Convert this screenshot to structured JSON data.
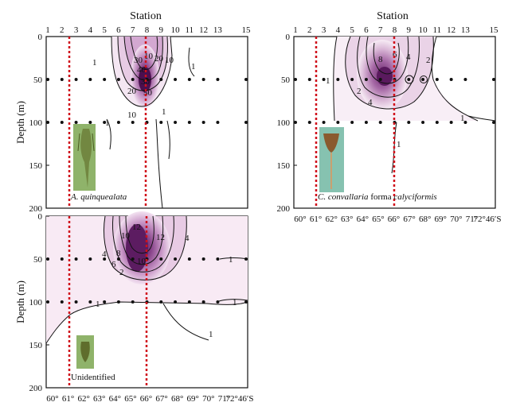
{
  "chart_data": [
    {
      "type": "contour",
      "panel": "top-left",
      "title": "Station",
      "ylabel": "Depth (m)",
      "x_top_ticks": [
        "1",
        "2",
        "3",
        "4",
        "5",
        "6",
        "7",
        "8",
        "9",
        "10",
        "11",
        "12",
        "13",
        "15"
      ],
      "y_ticks": [
        "0",
        "50",
        "100",
        "150",
        "200"
      ],
      "ylim": [
        0,
        200
      ],
      "caption": "A. quinquealata",
      "caption_italic": "A. quinquealata",
      "caption_rest": "",
      "contour_labels": [
        "1",
        "1",
        "1",
        "10",
        "10",
        "10",
        "20",
        "20",
        "30",
        "30",
        "40",
        "50",
        "1"
      ],
      "sample_depths": [
        0,
        50,
        100
      ],
      "red_line_stations": [
        "2",
        "7"
      ],
      "peak": {
        "station": "7",
        "depth": 50
      }
    },
    {
      "type": "contour",
      "panel": "top-right",
      "title": "Station",
      "ylabel": "",
      "x_top_ticks": [
        "1",
        "2",
        "3",
        "4",
        "5",
        "6",
        "7",
        "8",
        "9",
        "10",
        "11",
        "12",
        "13",
        "15"
      ],
      "x_bottom_ticks": [
        "60°",
        "61°",
        "62°",
        "63°",
        "64°",
        "65°",
        "66°",
        "67°",
        "68°",
        "69°",
        "70°",
        "71°",
        "72°46′S"
      ],
      "y_ticks": [
        "0",
        "50",
        "100",
        "150",
        "200"
      ],
      "ylim": [
        0,
        200
      ],
      "caption": "C. convallaria forma calyciformis",
      "caption_italic": "C. convallaria",
      "caption_rest": "forma",
      "caption_italic2": "calyciformis",
      "contour_labels": [
        "8",
        "6",
        "4",
        "2",
        "2",
        "4",
        "1",
        "1",
        "1"
      ],
      "sample_depths": [
        0,
        50,
        100
      ],
      "red_line_stations": [
        "2",
        "7"
      ],
      "peak": {
        "station": "7",
        "depth": 50
      }
    },
    {
      "type": "contour",
      "panel": "bottom-left",
      "title": "",
      "ylabel": "Depth (m)",
      "x_bottom_ticks": [
        "60°",
        "61°",
        "62°",
        "63°",
        "64°",
        "65°",
        "66°",
        "67°",
        "68°",
        "69°",
        "70°",
        "71°",
        "72°46′S"
      ],
      "y_ticks": [
        "0",
        "50",
        "100",
        "150",
        "200"
      ],
      "ylim": [
        0,
        200
      ],
      "caption": "Unidentified",
      "contour_labels": [
        "12",
        "10",
        "8",
        "6",
        "4",
        "2",
        "4",
        "12",
        "10",
        "1",
        "1",
        "1",
        "1"
      ],
      "sample_depths": [
        0,
        50,
        100
      ],
      "red_line_stations": [
        "2",
        "7"
      ],
      "peak": {
        "station": "6",
        "depth": 50
      }
    }
  ]
}
